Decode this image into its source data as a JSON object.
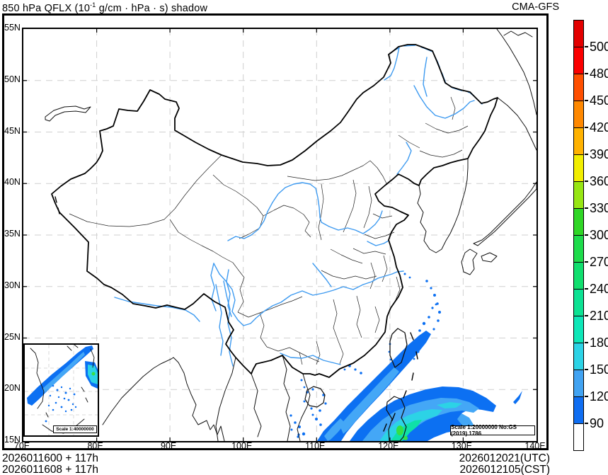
{
  "header": {
    "title_prefix": "850 hPa QFLX (10",
    "title_sup": "-1",
    "title_suffix": " g/cm · hPa · s) shadow",
    "model": "CMA-GFS"
  },
  "axes": {
    "lat_labels": [
      "55N",
      "50N",
      "45N",
      "40N",
      "35N",
      "30N",
      "25N",
      "20N",
      "15N"
    ],
    "lon_labels": [
      "70E",
      "80E",
      "90E",
      "100E",
      "110E",
      "120E",
      "130E",
      "140E"
    ],
    "lon_range": [
      70,
      140
    ],
    "lat_range": [
      15,
      55
    ]
  },
  "colorbar": {
    "labels_top_to_bottom": [
      "500",
      "480",
      "450",
      "420",
      "390",
      "360",
      "330",
      "300",
      "270",
      "240",
      "210",
      "180",
      "150",
      "120",
      "90"
    ],
    "colors_top_to_bottom": [
      "#e30000",
      "#fb0000",
      "#ff4f00",
      "#ff8800",
      "#ffb200",
      "#f2ee00",
      "#97e613",
      "#2fd626",
      "#1edc4b",
      "#10df6e",
      "#0ce293",
      "#0ee7b8",
      "#2cd3e6",
      "#41a3f2",
      "#0f6ef2",
      "#ffffff"
    ]
  },
  "scales": {
    "main": "Scale 1:20000000 No:GS (2019) 1786",
    "inset": "Scale 1:40000000"
  },
  "footer": {
    "init_line1": "2026011600 + 117h",
    "init_line2": "2026011608 + 117h",
    "valid_line1": "2026012021(UTC)",
    "valid_line2": "2026012105(CST)"
  },
  "colors": {
    "river": "#3d9af0",
    "grid": "#cfcfcf",
    "shade_90_120": "#0c70f2",
    "shade_120_150": "#44a7f6",
    "shade_150_180": "#2cd3e6",
    "shade_180_210": "#0fe0a8",
    "shade_210_240": "#35e045"
  }
}
